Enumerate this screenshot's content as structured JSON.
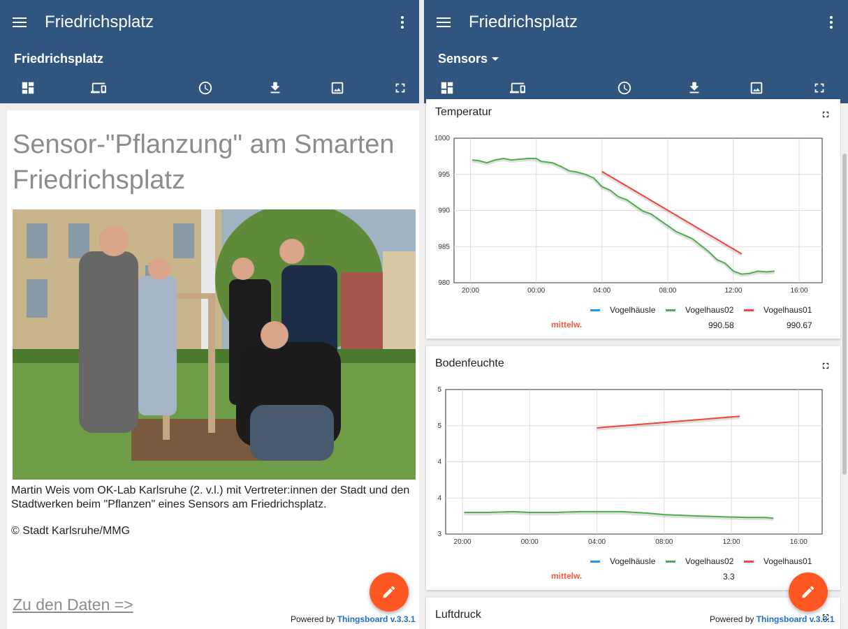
{
  "left": {
    "app_title": "Friedrichsplatz",
    "state_title": "Friedrichsplatz",
    "headline": "Sensor-\"Pflanzung\" am Smarten Friedrichsplatz",
    "caption": "Martin Weis vom OK-Lab Karlsruhe (2. v.l.) mit Vertreter:innen der Stadt und den Stadtwerken beim \"Pflanzen\" eines Sensors am Friedrichsplatz.",
    "copyright": "© Stadt Karlsruhe/MMG",
    "data_link": "Zu den Daten =>",
    "powered_by": "Powered by ",
    "powered_link": "Thingsboard v.3.3.1"
  },
  "right": {
    "app_title": "Friedrichsplatz",
    "state_title": "Sensors",
    "powered_by": "Powered by ",
    "powered_link": "Thingsboard v.3.3.1",
    "widgets": [
      {
        "title": "Temperatur",
        "avg_label": "mittelw.",
        "avg_values": [
          "990.58",
          "990.67"
        ]
      },
      {
        "title": "Bodenfeuchte",
        "avg_label": "mittelw.",
        "avg_values": [
          "3.3"
        ]
      },
      {
        "title": "Luftdruck"
      }
    ]
  },
  "toolbar_icons": [
    "dashboards-icon",
    "devices-icon",
    "history-icon",
    "download-icon",
    "export-image-icon",
    "fullscreen-icon"
  ],
  "colors": {
    "header": "#305680",
    "fab": "#ff5722",
    "series_blue": "#2196f3",
    "series_green": "#4caf50",
    "series_red": "#f44336",
    "avg_label": "#ef5b3c"
  },
  "chart_data": [
    {
      "type": "line",
      "title": "Temperatur",
      "x_ticks": [
        "20:00",
        "00:00",
        "04:00",
        "08:00",
        "12:00",
        "16:00"
      ],
      "y_ticks": [
        "980",
        "985",
        "990",
        "995",
        "1000"
      ],
      "ylim": [
        980,
        1000
      ],
      "series": [
        {
          "name": "Vogelhäusle",
          "color": "#2196f3",
          "points": []
        },
        {
          "name": "Vogelhaus02",
          "color": "#4caf50",
          "points": [
            [
              -3.9,
              997
            ],
            [
              -3.5,
              996.9
            ],
            [
              -3.0,
              996.6
            ],
            [
              -2.5,
              997.0
            ],
            [
              -2.0,
              997.2
            ],
            [
              -1.5,
              997.0
            ],
            [
              -1.0,
              997.1
            ],
            [
              -0.5,
              997.2
            ],
            [
              0.0,
              997.2
            ],
            [
              0.3,
              996.8
            ],
            [
              1.0,
              996.6
            ],
            [
              1.5,
              996.1
            ],
            [
              2.0,
              995.5
            ],
            [
              2.5,
              995.3
            ],
            [
              3.0,
              995.0
            ],
            [
              3.5,
              994.5
            ],
            [
              4.0,
              993.3
            ],
            [
              4.5,
              992.8
            ],
            [
              5.0,
              991.9
            ],
            [
              5.5,
              991.5
            ],
            [
              6.0,
              990.7
            ],
            [
              6.5,
              989.9
            ],
            [
              7.0,
              989.5
            ],
            [
              7.5,
              988.7
            ],
            [
              8.0,
              987.9
            ],
            [
              8.5,
              987.1
            ],
            [
              9.0,
              986.6
            ],
            [
              9.5,
              986.1
            ],
            [
              10.0,
              985.2
            ],
            [
              10.5,
              984.3
            ],
            [
              11.0,
              983.2
            ],
            [
              11.5,
              982.7
            ],
            [
              12.0,
              981.6
            ],
            [
              12.5,
              981.2
            ],
            [
              13.0,
              981.3
            ],
            [
              13.5,
              981.6
            ],
            [
              14.0,
              981.5
            ],
            [
              14.5,
              981.6
            ]
          ]
        },
        {
          "name": "Vogelhaus01",
          "color": "#f44336",
          "points": [
            [
              4.0,
              995.4
            ],
            [
              12.5,
              984.0
            ]
          ]
        }
      ]
    },
    {
      "type": "line",
      "title": "Bodenfeuchte",
      "x_ticks": [
        "20:00",
        "00:00",
        "04:00",
        "08:00",
        "12:00",
        "16:00"
      ],
      "y_ticks": [
        "3",
        "4",
        "4",
        "5",
        "5"
      ],
      "ylim": [
        3,
        5
      ],
      "series": [
        {
          "name": "Vogelhäusle",
          "color": "#2196f3",
          "points": []
        },
        {
          "name": "Vogelhaus02",
          "color": "#4caf50",
          "points": [
            [
              -3.9,
              3.3
            ],
            [
              -2.5,
              3.3
            ],
            [
              -1.0,
              3.31
            ],
            [
              0.0,
              3.3
            ],
            [
              1.5,
              3.3
            ],
            [
              3.0,
              3.31
            ],
            [
              4.0,
              3.31
            ],
            [
              5.5,
              3.31
            ],
            [
              7.0,
              3.29
            ],
            [
              8.0,
              3.27
            ],
            [
              9.0,
              3.26
            ],
            [
              10.0,
              3.25
            ],
            [
              11.5,
              3.24
            ],
            [
              13.0,
              3.23
            ],
            [
              14.0,
              3.23
            ],
            [
              14.5,
              3.22
            ]
          ]
        },
        {
          "name": "Vogelhaus01",
          "color": "#f44336",
          "points": [
            [
              4.0,
              4.47
            ],
            [
              12.5,
              4.63
            ]
          ]
        }
      ]
    }
  ]
}
